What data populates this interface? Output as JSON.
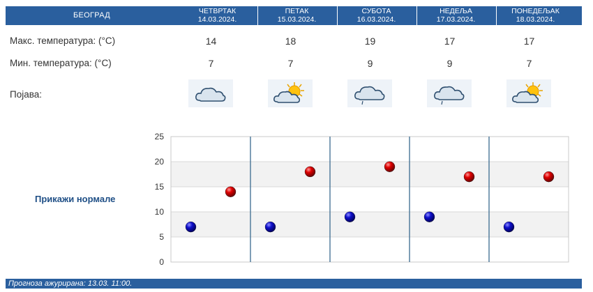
{
  "header": {
    "city": "БЕОГРАД",
    "days": [
      {
        "name": "ЧЕТВРТАК",
        "date": "14.03.2024."
      },
      {
        "name": "ПЕТАК",
        "date": "15.03.2024."
      },
      {
        "name": "СУБОТА",
        "date": "16.03.2024."
      },
      {
        "name": "НЕДЕЉА",
        "date": "17.03.2024."
      },
      {
        "name": "ПОНЕДЕЉАК",
        "date": "18.03.2024."
      }
    ]
  },
  "rows": {
    "max_label": "Макс. температура: (°C)",
    "min_label": "Мин. температура: (°C)",
    "weather_label": "Појава:",
    "max_values": [
      "14",
      "18",
      "19",
      "17",
      "17"
    ],
    "min_values": [
      "7",
      "7",
      "9",
      "9",
      "7"
    ],
    "weather_icons": [
      "cloud-icon",
      "partly-sunny-icon",
      "cloud-rain-icon",
      "cloud-rain-icon",
      "partly-sunny-icon"
    ]
  },
  "show_normals_link": "Прикажи нормале",
  "footer_text": "Прогноза ажурирана: 13.03. 11:00.",
  "colors": {
    "header_bg": "#2a5f9e",
    "max_marker": "#cc0000",
    "min_marker": "#0000bb"
  },
  "chart_data": {
    "type": "scatter",
    "ylim": [
      0,
      25
    ],
    "yticks": [
      "0",
      "5",
      "10",
      "15",
      "20",
      "25"
    ],
    "grid": true,
    "series": [
      {
        "values": [
          14,
          18,
          19,
          17,
          17
        ]
      },
      {
        "values": [
          7,
          7,
          9,
          9,
          7
        ]
      }
    ]
  }
}
